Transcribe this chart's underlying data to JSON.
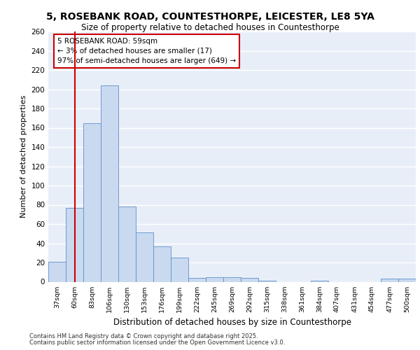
{
  "title_line1": "5, ROSEBANK ROAD, COUNTESTHORPE, LEICESTER, LE8 5YA",
  "title_line2": "Size of property relative to detached houses in Countesthorpe",
  "xlabel": "Distribution of detached houses by size in Countesthorpe",
  "ylabel": "Number of detached properties",
  "categories": [
    "37sqm",
    "60sqm",
    "83sqm",
    "106sqm",
    "130sqm",
    "153sqm",
    "176sqm",
    "199sqm",
    "222sqm",
    "245sqm",
    "269sqm",
    "292sqm",
    "315sqm",
    "338sqm",
    "361sqm",
    "384sqm",
    "407sqm",
    "431sqm",
    "454sqm",
    "477sqm",
    "500sqm"
  ],
  "values": [
    21,
    77,
    165,
    204,
    78,
    51,
    37,
    25,
    4,
    5,
    5,
    4,
    1,
    0,
    0,
    1,
    0,
    0,
    0,
    3,
    3
  ],
  "bar_color": "#c9d9f0",
  "bar_edge_color": "#6090c8",
  "background_color": "#e8eef8",
  "grid_color": "#ffffff",
  "annotation_text_line1": "5 ROSEBANK ROAD: 59sqm",
  "annotation_text_line2": "← 3% of detached houses are smaller (17)",
  "annotation_text_line3": "97% of semi-detached houses are larger (649) →",
  "vline_x": 1,
  "vline_color": "#cc0000",
  "annotation_box_color": "#cc0000",
  "ylim": [
    0,
    260
  ],
  "yticks": [
    0,
    20,
    40,
    60,
    80,
    100,
    120,
    140,
    160,
    180,
    200,
    220,
    240,
    260
  ],
  "footer_line1": "Contains HM Land Registry data © Crown copyright and database right 2025.",
  "footer_line2": "Contains public sector information licensed under the Open Government Licence v3.0."
}
